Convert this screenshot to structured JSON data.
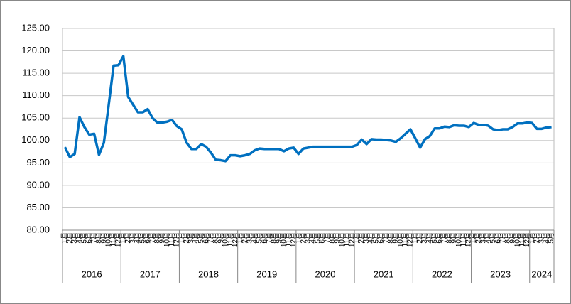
{
  "chart_data": {
    "type": "line",
    "categories": [
      "1月",
      "2月",
      "3月",
      "4月",
      "5月",
      "6月",
      "7月",
      "8月",
      "9月",
      "10月",
      "11月",
      "12月",
      "1月",
      "2月",
      "3月",
      "4月",
      "5月",
      "6月",
      "7月",
      "8月",
      "9月",
      "10月",
      "11月",
      "12月",
      "1月",
      "2月",
      "3月",
      "4月",
      "5月",
      "6月",
      "7月",
      "8月",
      "9月",
      "10月",
      "11月",
      "12月",
      "1月",
      "2月",
      "3月",
      "4月",
      "5月",
      "6月",
      "7月",
      "8月",
      "9月",
      "10月",
      "11月",
      "12月",
      "1月",
      "2月",
      "3月",
      "4月",
      "5月",
      "6月",
      "7月",
      "8月",
      "9月",
      "10月",
      "11月",
      "12月",
      "1月",
      "2月",
      "3月",
      "4月",
      "5月",
      "6月",
      "7月",
      "8月",
      "9月",
      "10月",
      "11月",
      "12月",
      "1月",
      "2月",
      "3月",
      "4月",
      "5月",
      "6月",
      "7月",
      "8月",
      "9月",
      "10月",
      "11月",
      "12月",
      "1月",
      "2月",
      "3月",
      "4月",
      "5月",
      "6月",
      "7月",
      "8月",
      "9月",
      "10月",
      "11月",
      "12月",
      "1月",
      "2月",
      "3月",
      "4月",
      "5月"
    ],
    "year_groups": [
      "2016",
      "2017",
      "2018",
      "2019",
      "2020",
      "2021",
      "2022",
      "2023",
      "2024"
    ],
    "series": [
      {
        "color": "#0070c0",
        "values": [
          98.5,
          96.3,
          97,
          105.2,
          103,
          101.3,
          101.5,
          96.8,
          99.5,
          108,
          116.7,
          116.8,
          118.8,
          109.7,
          108,
          106.3,
          106.3,
          107,
          105,
          104,
          104,
          104.2,
          104.6,
          103.2,
          102.5,
          99.5,
          98.1,
          98.1,
          99.2,
          98.6,
          97.3,
          95.7,
          95.6,
          95.4,
          96.7,
          96.7,
          96.5,
          96.7,
          97,
          97.8,
          98.2,
          98.1,
          98.1,
          98.1,
          98.1,
          97.6,
          98.2,
          98.4,
          97,
          98.2,
          98.4,
          98.6,
          98.6,
          98.6,
          98.6,
          98.6,
          98.6,
          98.6,
          98.6,
          98.6,
          99,
          100.2,
          99.2,
          100.3,
          100.2,
          100.2,
          100.1,
          100,
          99.7,
          100.5,
          101.5,
          102.5,
          100.5,
          98.4,
          100.3,
          101,
          102.7,
          102.7,
          103.1,
          103,
          103.4,
          103.3,
          103.3,
          103,
          103.9,
          103.5,
          103.5,
          103.3,
          102.5,
          102.3,
          102.5,
          102.5,
          103,
          103.8,
          103.8,
          104,
          103.9,
          102.6,
          102.6,
          102.9,
          103
        ]
      }
    ],
    "ylim": [
      80,
      125
    ],
    "yticks": [
      {
        "value": 80,
        "label": "80.00"
      },
      {
        "value": 85,
        "label": "85.00"
      },
      {
        "value": 90,
        "label": "90.00"
      },
      {
        "value": 95,
        "label": "95.00"
      },
      {
        "value": 100,
        "label": "100.00"
      },
      {
        "value": 105,
        "label": "105.00"
      },
      {
        "value": 110,
        "label": "110.00"
      },
      {
        "value": 115,
        "label": "115.00"
      },
      {
        "value": 120,
        "label": "120.00"
      },
      {
        "value": 125,
        "label": "125.00"
      }
    ],
    "grid": true
  }
}
